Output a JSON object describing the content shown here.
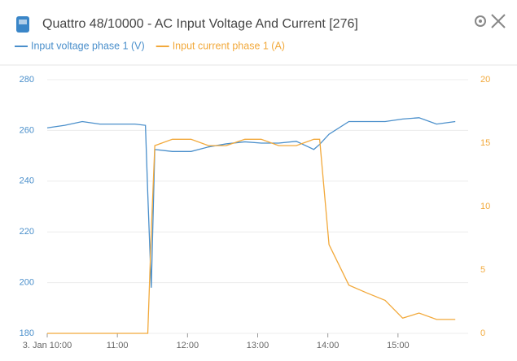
{
  "chart_data": {
    "type": "line",
    "title": "Quattro 48/10000 - AC Input Voltage And Current [276]",
    "x": [
      "10:00",
      "10:15",
      "10:30",
      "10:45",
      "11:00",
      "11:15",
      "11:24",
      "11:26",
      "11:29",
      "11:32",
      "11:47",
      "12:03",
      "12:18",
      "12:33",
      "12:49",
      "13:03",
      "13:18",
      "13:33",
      "13:48",
      "13:53",
      "14:01",
      "14:18",
      "14:33",
      "14:49",
      "15:04",
      "15:18",
      "15:33",
      "15:49"
    ],
    "series": [
      {
        "name": "Input voltage phase 1 (V)",
        "color": "#4a8fcb",
        "axis": "y",
        "values": [
          261,
          262,
          263.5,
          262.5,
          262.5,
          262.5,
          262,
          235,
          198,
          252.5,
          251.7,
          251.7,
          253.5,
          254.7,
          255.5,
          255,
          255,
          255.7,
          252.5,
          254.5,
          258.5,
          263.5,
          263.5,
          263.5,
          264.5,
          265,
          262.5,
          263.5
        ]
      },
      {
        "name": "Input current phase 1 (A)",
        "color": "#f2a93b",
        "axis": "y2",
        "values": [
          0,
          0,
          0,
          0,
          0,
          0,
          0,
          0,
          8,
          14.8,
          15.3,
          15.3,
          14.8,
          14.8,
          15.3,
          15.3,
          14.8,
          14.8,
          15.3,
          15.3,
          7,
          3.8,
          3.2,
          2.6,
          1.2,
          1.6,
          1.1,
          1.1
        ]
      }
    ],
    "xlim": [
      "10:00",
      "16:00"
    ],
    "xticks": [
      {
        "value": "10:00",
        "label": "3. Jan 10:00"
      },
      "11:00",
      "12:00",
      "13:00",
      "14:00",
      "15:00"
    ],
    "ylim": [
      180,
      280
    ],
    "yticks": [
      180,
      200,
      220,
      240,
      260,
      280
    ],
    "y2lim": [
      0,
      20
    ],
    "y2ticks": [
      0,
      5,
      10,
      15,
      20
    ],
    "grid": true
  }
}
